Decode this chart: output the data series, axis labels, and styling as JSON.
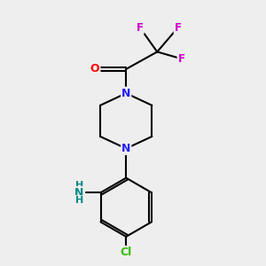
{
  "background_color": "#eeeeee",
  "atom_colors": {
    "N": "#2020ff",
    "O": "#ff0000",
    "F": "#cc00cc",
    "Cl": "#33bb00",
    "NH2": "#008888",
    "C": "#000000"
  },
  "bond_color": "#000000",
  "bond_width": 1.5
}
